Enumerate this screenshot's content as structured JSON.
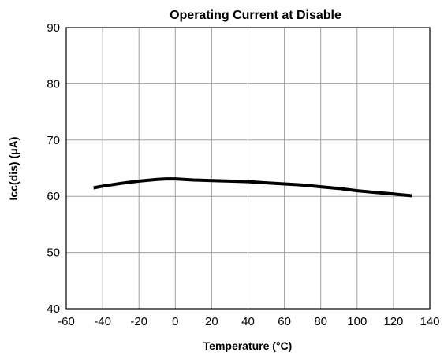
{
  "chart_data": {
    "type": "line",
    "title": "Operating Current at Disable",
    "xlabel": "Temperature (°C)",
    "ylabel": "Icc(dis) (μA)",
    "xlim": [
      -60,
      140
    ],
    "ylim": [
      40,
      90
    ],
    "xticks": [
      -60,
      -40,
      -20,
      0,
      20,
      40,
      60,
      80,
      100,
      120,
      140
    ],
    "yticks": [
      40,
      50,
      60,
      70,
      80,
      90
    ],
    "grid": true,
    "series": [
      {
        "color": "#000000",
        "x": [
          -45,
          -40,
          -30,
          -20,
          -10,
          -5,
          0,
          10,
          20,
          30,
          40,
          50,
          60,
          70,
          80,
          90,
          100,
          110,
          120,
          130
        ],
        "y": [
          61.5,
          61.8,
          62.3,
          62.7,
          63.0,
          63.1,
          63.1,
          62.9,
          62.8,
          62.7,
          62.6,
          62.4,
          62.2,
          62.0,
          61.7,
          61.4,
          61.0,
          60.7,
          60.4,
          60.1
        ]
      }
    ]
  }
}
